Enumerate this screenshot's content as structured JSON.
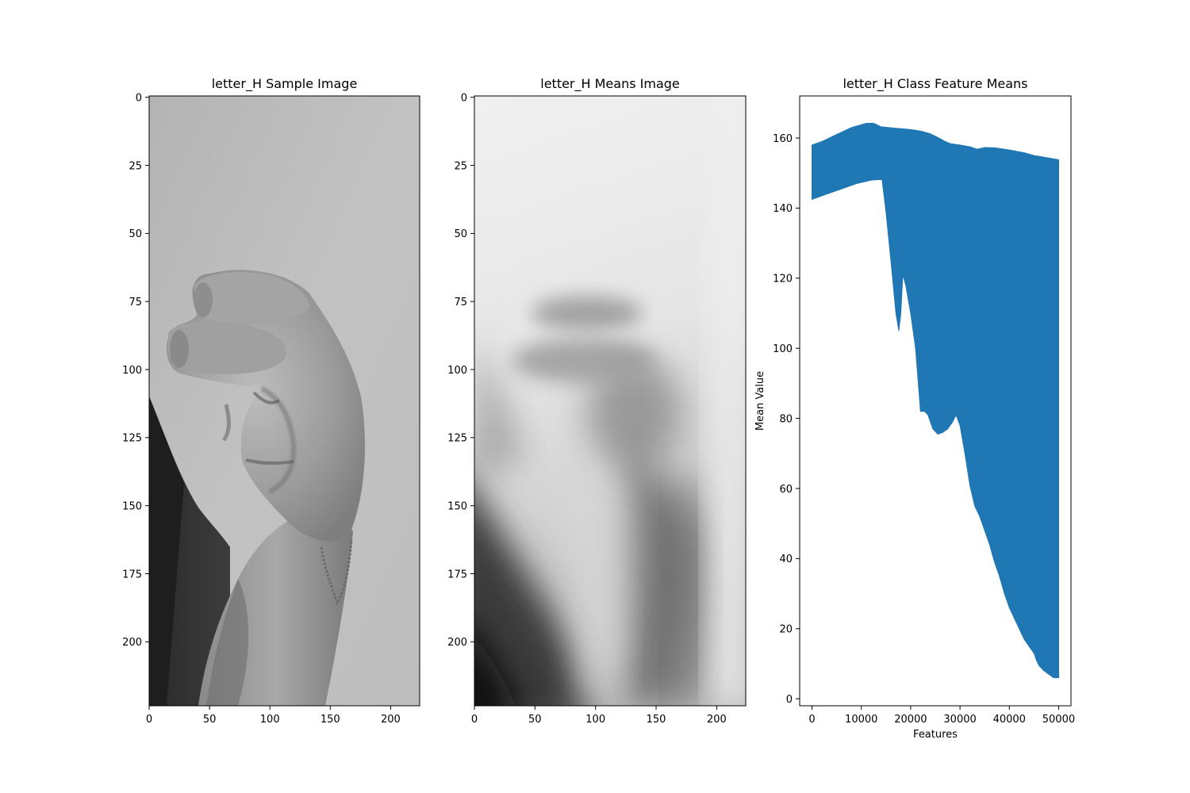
{
  "figure": {
    "panels": [
      {
        "title": "letter_H Sample Image",
        "kind": "sample-image",
        "xticks": [
          "0",
          "50",
          "100",
          "150",
          "200"
        ],
        "yticks": [
          "0",
          "25",
          "50",
          "75",
          "100",
          "125",
          "150",
          "175",
          "200"
        ],
        "xlim": [
          0,
          224
        ],
        "ylim": [
          224,
          0
        ]
      },
      {
        "title": "letter_H Means Image",
        "kind": "means-image",
        "xticks": [
          "0",
          "50",
          "100",
          "150",
          "200"
        ],
        "yticks": [
          "0",
          "25",
          "50",
          "75",
          "100",
          "125",
          "150",
          "175",
          "200"
        ],
        "xlim": [
          0,
          224
        ],
        "ylim": [
          224,
          0
        ]
      }
    ]
  },
  "chart_data": {
    "type": "area",
    "title": "letter_H Class Feature Means",
    "xlabel": "Features",
    "ylabel": "Mean Value",
    "xlim": [
      -2500,
      52500
    ],
    "ylim": [
      -2,
      172
    ],
    "xticks": [
      0,
      10000,
      20000,
      30000,
      40000,
      50000
    ],
    "yticks": [
      0,
      20,
      40,
      60,
      80,
      100,
      120,
      140,
      160
    ],
    "color": "#1f77b4",
    "upper": {
      "x": [
        0,
        2000,
        5000,
        8000,
        11000,
        12500,
        14000,
        17000,
        20000,
        22000,
        24000,
        26000,
        27000,
        28000,
        30000,
        32000,
        33500,
        35000,
        37000,
        40000,
        43000,
        45000,
        47000,
        50000
      ],
      "y": [
        158,
        159,
        161,
        163,
        164.2,
        164.2,
        163.2,
        162.8,
        162.4,
        162,
        161.2,
        159.8,
        159,
        158.4,
        158,
        157.5,
        156.8,
        157.3,
        157.2,
        156.6,
        155.8,
        155,
        154.5,
        153.8
      ]
    },
    "lower": {
      "x": [
        0,
        3000,
        6000,
        9000,
        12000,
        14200,
        15000,
        16000,
        17000,
        17600,
        18000,
        18400,
        19000,
        20000,
        21000,
        22000,
        22800,
        23500,
        24500,
        25500,
        26500,
        27500,
        28500,
        29200,
        30000,
        31000,
        32000,
        33000,
        34000,
        35000,
        36000,
        37000,
        38000,
        39000,
        40000,
        41000,
        42000,
        43000,
        44000,
        45000,
        45500,
        46000,
        47000,
        48000,
        49000,
        50000
      ],
      "y": [
        142.5,
        144,
        145.5,
        147,
        148,
        148.2,
        139,
        125,
        110,
        105,
        110,
        121,
        118,
        110,
        100,
        82,
        82,
        81,
        77,
        75.5,
        76,
        77,
        79,
        81,
        78,
        70,
        61,
        55,
        52,
        48,
        44,
        39,
        35,
        30,
        26,
        23,
        20,
        17,
        15,
        13,
        11,
        9.5,
        8,
        7,
        6,
        6
      ]
    }
  }
}
